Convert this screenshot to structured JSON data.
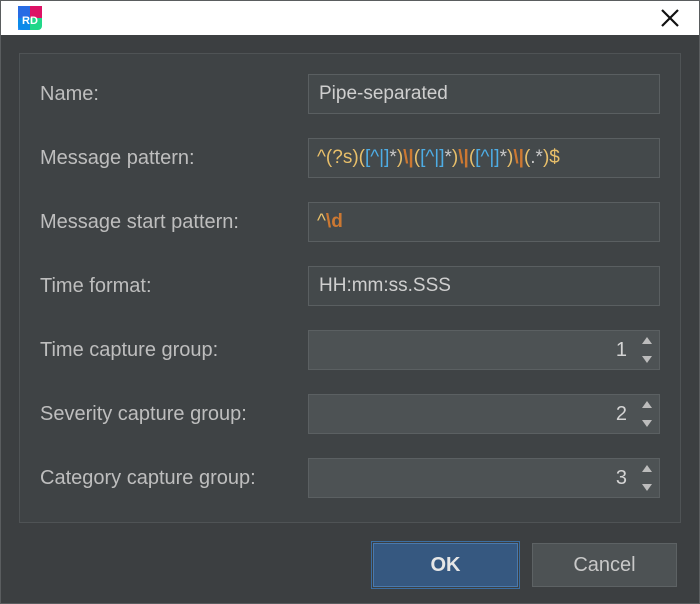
{
  "colors": {
    "window_bg": "#3c3f41",
    "panel_bg": "#3f4345",
    "input_bg": "#44494b",
    "spinner_bg": "#4d5254",
    "border": "#5a5f61",
    "text": "#bebebe",
    "btn_primary_bg": "#365880",
    "btn_primary_border": "#4a79ad",
    "regex_punct": "#e8bf6a",
    "regex_escape": "#cc7832",
    "regex_class": "#4eade5"
  },
  "titlebar": {
    "app_icon_label": "RD"
  },
  "form": {
    "name": {
      "label": "Name:",
      "value": "Pipe-separated"
    },
    "message_pattern": {
      "label": "Message pattern:",
      "tokens": [
        {
          "t": "^",
          "c": "c-yellow"
        },
        {
          "t": "(?s)",
          "c": "c-yellow"
        },
        {
          "t": "(",
          "c": "c-yellow"
        },
        {
          "t": "[^|]",
          "c": "c-cyan"
        },
        {
          "t": "*",
          "c": "c-plain"
        },
        {
          "t": ")",
          "c": "c-yellow"
        },
        {
          "t": "\\|",
          "c": "c-orange"
        },
        {
          "t": "(",
          "c": "c-yellow"
        },
        {
          "t": "[^|]",
          "c": "c-cyan"
        },
        {
          "t": "*",
          "c": "c-plain"
        },
        {
          "t": ")",
          "c": "c-yellow"
        },
        {
          "t": "\\|",
          "c": "c-orange"
        },
        {
          "t": "(",
          "c": "c-yellow"
        },
        {
          "t": "[^|]",
          "c": "c-cyan"
        },
        {
          "t": "*",
          "c": "c-plain"
        },
        {
          "t": ")",
          "c": "c-yellow"
        },
        {
          "t": "\\|",
          "c": "c-orange"
        },
        {
          "t": "(",
          "c": "c-yellow"
        },
        {
          "t": ".*",
          "c": "c-plain"
        },
        {
          "t": ")",
          "c": "c-yellow"
        },
        {
          "t": "$",
          "c": "c-yellow"
        }
      ]
    },
    "message_start_pattern": {
      "label": "Message start pattern:",
      "tokens": [
        {
          "t": "^",
          "c": "c-yellow"
        },
        {
          "t": "\\d",
          "c": "c-orange"
        }
      ]
    },
    "time_format": {
      "label": "Time format:",
      "value": "HH:mm:ss.SSS"
    },
    "time_capture_group": {
      "label": "Time capture group:",
      "value": "1"
    },
    "severity_capture_group": {
      "label": "Severity capture group:",
      "value": "2"
    },
    "category_capture_group": {
      "label": "Category capture group:",
      "value": "3"
    }
  },
  "buttons": {
    "ok": "OK",
    "cancel": "Cancel"
  }
}
